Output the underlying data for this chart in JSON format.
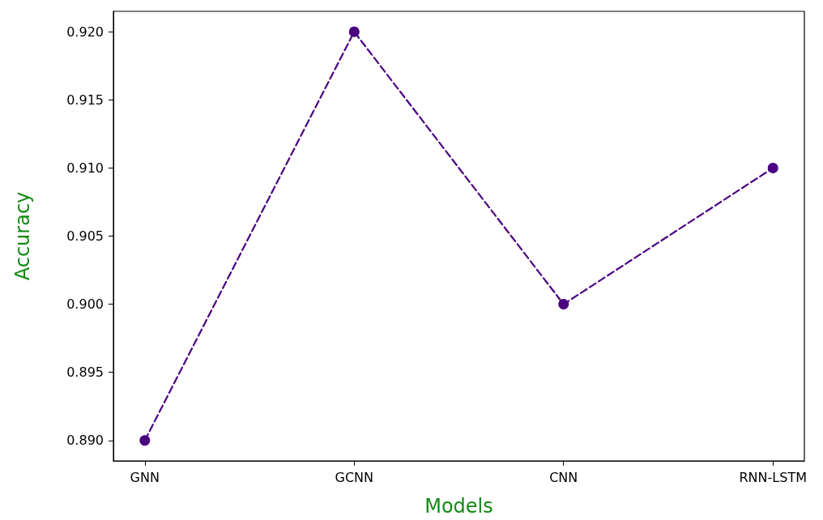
{
  "chart_data": {
    "type": "line",
    "xlabel": "Models",
    "ylabel": "Accuracy",
    "categories": [
      "GNN",
      "GCNN",
      "CNN",
      "RNN-LSTM"
    ],
    "series": [
      {
        "color": "#4b0082",
        "values": [
          0.89,
          0.92,
          0.9,
          0.91
        ]
      }
    ],
    "ylim": [
      0.8885,
      0.9215
    ],
    "yticks": [
      {
        "value": 0.89,
        "label": "0.890"
      },
      {
        "value": 0.895,
        "label": "0.895"
      },
      {
        "value": 0.9,
        "label": "0.900"
      },
      {
        "value": 0.905,
        "label": "0.905"
      },
      {
        "value": 0.91,
        "label": "0.910"
      },
      {
        "value": 0.915,
        "label": "0.915"
      },
      {
        "value": 0.92,
        "label": "0.920"
      }
    ],
    "marker": "circle",
    "line_style": "dashed",
    "grid": false
  }
}
